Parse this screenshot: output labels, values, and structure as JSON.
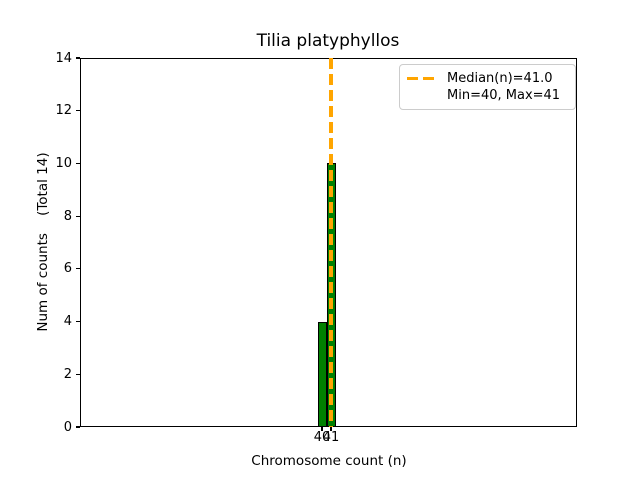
{
  "chart_data": {
    "type": "bar",
    "title": "Tilia platyphyllos",
    "xlabel": "Chromosome count (n)",
    "ylabel": "Num of counts    (Total 14)",
    "categories": [
      "40",
      "41"
    ],
    "values": [
      4,
      10
    ],
    "x_numeric": [
      40,
      41
    ],
    "xticks": [
      "40",
      "41"
    ],
    "yticks": [
      0,
      2,
      4,
      6,
      8,
      10,
      12,
      14
    ],
    "ylim": [
      0,
      14
    ],
    "total_counts": 14,
    "median": 41.0,
    "min": 40,
    "max": 41,
    "grid": false,
    "legend": {
      "position": "upper right",
      "entries": [
        {
          "label": "Median(n)=41.0",
          "sample": "orange-dashed-line"
        },
        {
          "label": "Min=40, Max=41",
          "sample": "none"
        }
      ]
    },
    "colors": {
      "bar_fill": "#008000",
      "bar_edge": "#000000",
      "median_line": "#FFA500",
      "text": "#000000",
      "spine": "#000000",
      "legend_border": "#cccccc",
      "background": "#ffffff"
    }
  }
}
